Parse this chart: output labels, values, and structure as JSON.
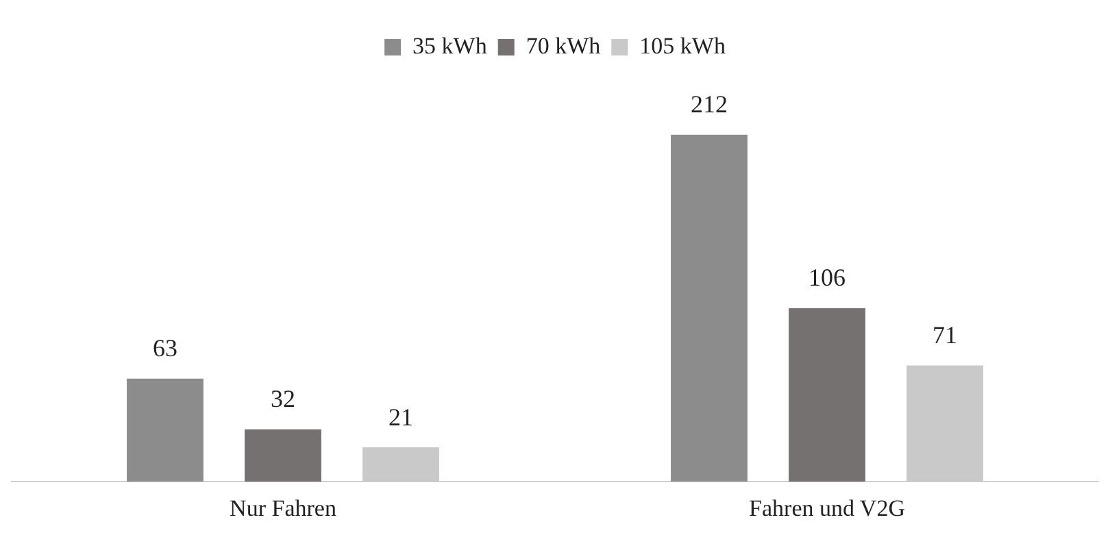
{
  "chart_data": {
    "type": "bar",
    "categories": [
      "Nur Fahren",
      "Fahren und V2G"
    ],
    "series": [
      {
        "name": "35 kWh",
        "color": "#8c8c8c",
        "values": [
          63,
          212
        ]
      },
      {
        "name": "70 kWh",
        "color": "#767171",
        "values": [
          32,
          106
        ]
      },
      {
        "name": "105 kWh",
        "color": "#c9c9c9",
        "values": [
          21,
          71
        ]
      }
    ],
    "data_labels": true,
    "legend": "top",
    "grid": false
  }
}
